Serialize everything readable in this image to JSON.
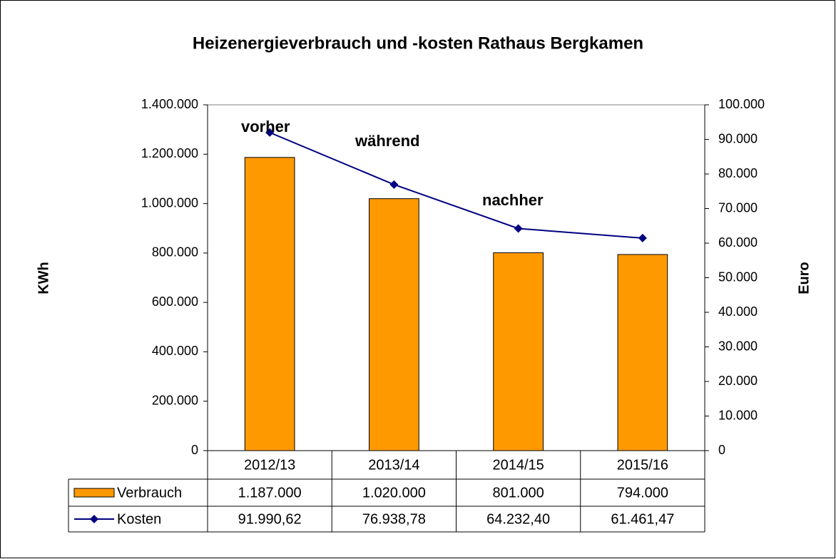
{
  "chart_data": {
    "type": "bar",
    "title": "Heizenergieverbrauch und -kosten Rathaus Bergkamen",
    "ylabel": "KWh",
    "y2label": "Euro",
    "categories": [
      "2012/13",
      "2013/14",
      "2014/15",
      "2015/16"
    ],
    "series": [
      {
        "name": "Verbrauch",
        "type": "bar",
        "color": "#ff9900",
        "values": [
          1187000,
          1020000,
          801000,
          794000
        ],
        "value_labels": [
          "1.187.000",
          "1.020.000",
          "801.000",
          "794.000"
        ]
      },
      {
        "name": "Kosten",
        "type": "line",
        "axis": "y2",
        "color": "#000080",
        "values": [
          91990.62,
          76938.78,
          64232.4,
          61461.47
        ],
        "value_labels": [
          "91.990,62",
          "76.938,78",
          "64.232,40",
          "61.461,47"
        ]
      }
    ],
    "ylim": [
      0,
      1400000
    ],
    "yticks": [
      0,
      {
        "value": 200000,
        "label": "200.000"
      },
      {
        "value": 400000,
        "label": "400.000"
      },
      {
        "value": 600000,
        "label": "600.000"
      },
      {
        "value": 800000,
        "label": "800.000"
      },
      {
        "value": 1000000,
        "label": "1.000.000"
      },
      {
        "value": 1200000,
        "label": "1.200.000"
      },
      {
        "value": 1400000,
        "label": "1.400.000"
      }
    ],
    "y2lim": [
      0,
      100000
    ],
    "y2ticks": [
      0,
      {
        "value": 10000,
        "label": "10.000"
      },
      {
        "value": 20000,
        "label": "20.000"
      },
      {
        "value": 30000,
        "label": "30.000"
      },
      {
        "value": 40000,
        "label": "40.000"
      },
      {
        "value": 50000,
        "label": "50.000"
      },
      {
        "value": 60000,
        "label": "60.000"
      },
      {
        "value": 70000,
        "label": "70.000"
      },
      {
        "value": 80000,
        "label": "80.000"
      },
      {
        "value": 90000,
        "label": "90.000"
      },
      {
        "value": 100000,
        "label": "100.000"
      }
    ],
    "annotations": [
      "vorher",
      "während",
      "nachher"
    ]
  }
}
